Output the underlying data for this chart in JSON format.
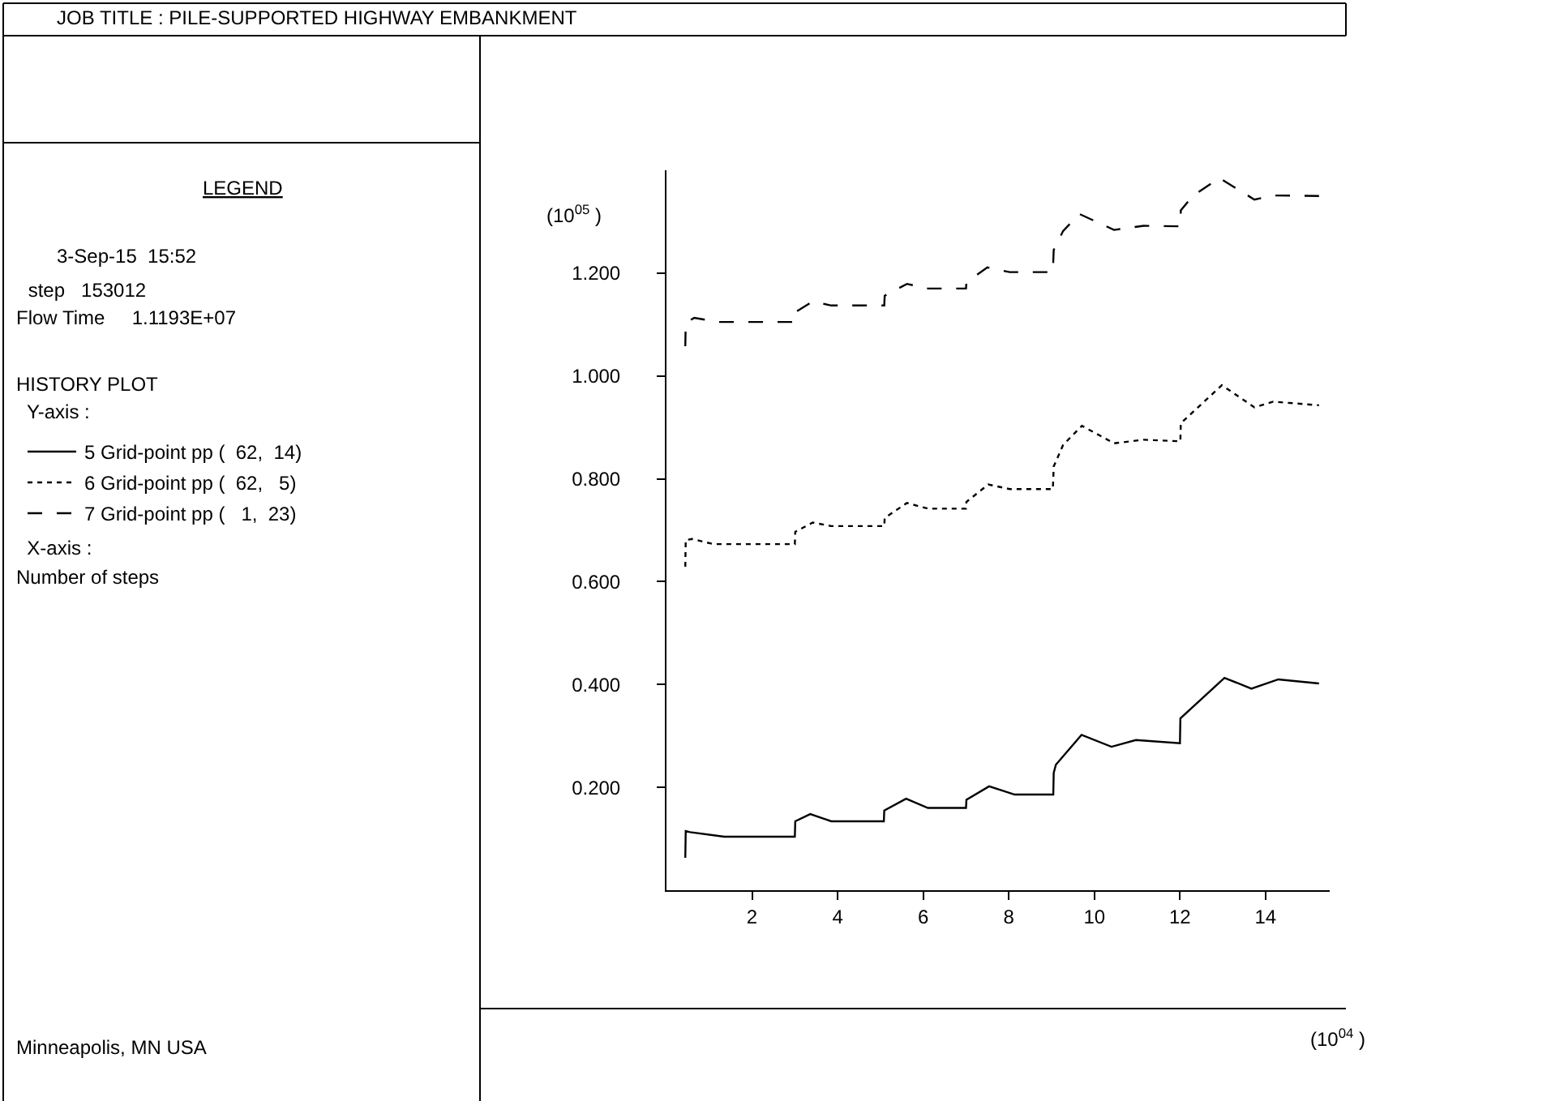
{
  "chart_data": {
    "type": "line",
    "title": "JOB TITLE : PILE-SUPPORTED HIGHWAY EMBANKMENT",
    "legend_title": "LEGEND",
    "annotations": [
      "3-Sep-15  15:52",
      " step   153012",
      "Flow Time     1.1193E+07",
      "HISTORY PLOT",
      "  Y-axis :",
      "  X-axis :",
      "Number of steps",
      "(10$^{05}$ )",
      "(10$^{04}$ )",
      "Minneapolis, MN USA"
    ],
    "xlim": [
      0,
      15.5
    ],
    "ylim": [
      0,
      1.4
    ],
    "xticks": [
      2,
      4,
      6,
      8,
      10,
      12,
      14
    ],
    "yticks": [
      {
        "value": 0.2,
        "label": "0.200"
      },
      {
        "value": 0.4,
        "label": "0.400"
      },
      {
        "value": 0.6,
        "label": "0.600"
      },
      {
        "value": 0.8,
        "label": "0.800"
      },
      {
        "value": 1.0,
        "label": "1.000"
      },
      {
        "value": 1.2,
        "label": "1.200"
      }
    ],
    "legend": "left",
    "marker": "none",
    "series": [
      {
        "name": "5 Grid-point pp (  62,  14)",
        "color": "#000000",
        "line_style": "solid",
        "x": [
          0.44,
          0.45,
          0.55,
          1.35,
          3.0,
          3.01,
          3.36,
          3.85,
          5.08,
          5.09,
          5.6,
          6.11,
          7.0,
          7.01,
          7.54,
          8.14,
          9.04,
          9.05,
          9.1,
          9.7,
          10.4,
          10.97,
          12.0,
          12.01,
          13.04,
          13.67,
          14.3,
          15.25
        ],
        "values": [
          0.063,
          0.115,
          0.113,
          0.104,
          0.104,
          0.134,
          0.148,
          0.134,
          0.134,
          0.155,
          0.178,
          0.16,
          0.16,
          0.176,
          0.202,
          0.186,
          0.186,
          0.228,
          0.244,
          0.302,
          0.279,
          0.292,
          0.286,
          0.334,
          0.413,
          0.392,
          0.41,
          0.402
        ]
      },
      {
        "name": "6 Grid-point pp (  62,   5)",
        "color": "#000000",
        "line_style": "dotted",
        "x": [
          0.44,
          0.45,
          0.6,
          1.1,
          3.0,
          3.01,
          3.42,
          3.85,
          5.09,
          5.1,
          5.62,
          6.11,
          7.0,
          7.01,
          7.52,
          8.02,
          9.03,
          9.05,
          9.27,
          9.71,
          10.46,
          11.15,
          12.01,
          12.02,
          12.98,
          13.74,
          14.18,
          15.25
        ],
        "values": [
          0.629,
          0.681,
          0.683,
          0.673,
          0.673,
          0.697,
          0.715,
          0.708,
          0.708,
          0.724,
          0.753,
          0.742,
          0.742,
          0.755,
          0.789,
          0.78,
          0.78,
          0.824,
          0.866,
          0.903,
          0.869,
          0.876,
          0.873,
          0.908,
          0.982,
          0.939,
          0.95,
          0.943
        ]
      },
      {
        "name": "7 Grid-point pp (   1,  23)",
        "color": "#000000",
        "line_style": "dashed",
        "x": [
          0.44,
          0.45,
          0.65,
          1.22,
          3.0,
          3.01,
          3.42,
          3.85,
          5.09,
          5.1,
          5.62,
          6.11,
          7.0,
          7.01,
          7.5,
          8.02,
          9.03,
          9.05,
          9.27,
          9.65,
          10.46,
          11.15,
          12.01,
          12.02,
          12.3,
          12.92,
          13.74,
          14.18,
          15.25
        ],
        "values": [
          1.058,
          1.103,
          1.113,
          1.105,
          1.105,
          1.124,
          1.145,
          1.137,
          1.137,
          1.156,
          1.179,
          1.17,
          1.17,
          1.182,
          1.211,
          1.202,
          1.202,
          1.245,
          1.282,
          1.315,
          1.284,
          1.292,
          1.291,
          1.322,
          1.35,
          1.385,
          1.343,
          1.351,
          1.35
        ]
      }
    ]
  }
}
